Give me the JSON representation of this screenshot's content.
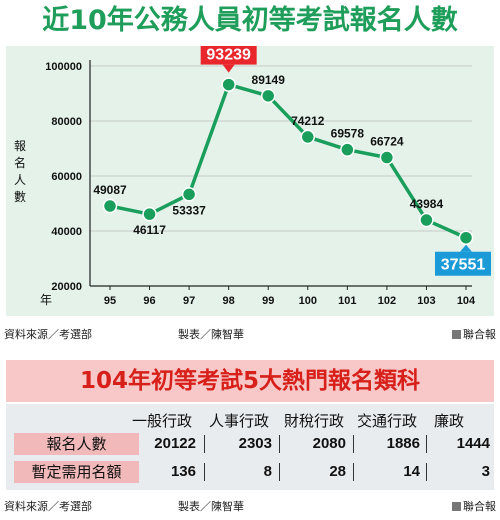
{
  "title": "近10年公務人員初等考試報名人數",
  "chart_data": {
    "type": "line",
    "x_unit": "年",
    "ylabel": "報名人數",
    "categories": [
      "95",
      "96",
      "97",
      "98",
      "99",
      "100",
      "101",
      "102",
      "103",
      "104"
    ],
    "values": [
      49087,
      46117,
      53337,
      93239,
      89149,
      74212,
      69578,
      66724,
      43984,
      37551
    ],
    "yticks": [
      "20000",
      "40000",
      "60000",
      "80000",
      "100000"
    ],
    "ylim": [
      20000,
      100000
    ],
    "grid": true,
    "highlight_max": "93239",
    "highlight_last": "37551",
    "line_color": "#1a9e5c",
    "max_label_color": "#e8262c",
    "last_label_color": "#1a9ad6"
  },
  "source_line_1": {
    "source": "資料來源／考選部",
    "maker": "製表／陳智華",
    "credit": "聯合報"
  },
  "table": {
    "title": "104年初等考試5大熱門報名類科",
    "columns": [
      "一般行政",
      "人事行政",
      "財稅行政",
      "交通行政",
      "廉政"
    ],
    "rows": [
      {
        "label": "報名人數",
        "values": [
          "20122",
          "2303",
          "2080",
          "1886",
          "1444"
        ]
      },
      {
        "label": "暫定需用名額",
        "values": [
          "136",
          "8",
          "28",
          "14",
          "3"
        ]
      }
    ]
  },
  "source_line_2": {
    "source": "資料來源／考選部",
    "maker": "製表／陳智華",
    "credit": "聯合報"
  }
}
